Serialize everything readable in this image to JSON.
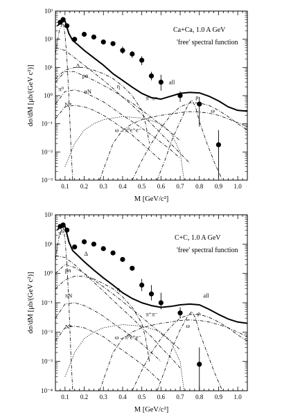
{
  "chart_data": [
    {
      "type": "line",
      "annotation_title": "Ca+Ca,  1.0 A GeV",
      "annotation_subtitle": "'free' spectral function",
      "xlabel": "M [GeV/c²]",
      "ylabel": "dσ/dM  [μb/(GeV c²)]",
      "xlim": [
        0.05,
        1.05
      ],
      "ylim_log10": [
        -3,
        3
      ],
      "x_scale": "linear",
      "y_scale": "log",
      "xticks": [
        0.1,
        0.2,
        0.3,
        0.4,
        0.5,
        0.6,
        0.7,
        0.8,
        0.9,
        1.0
      ],
      "xtick_labels": [
        "0.1",
        "0.2",
        "0.3",
        "0.4",
        "0.5",
        "0.6",
        "0.7",
        "0.8",
        "0.9",
        "1.0"
      ],
      "ytick_labels": [
        "10⁻³",
        "10⁻²",
        "10⁻¹",
        "10⁰",
        "10¹",
        "10²",
        "10³"
      ],
      "series": [
        {
          "name": "all",
          "style": "solid-thick",
          "x": [
            0.06,
            0.08,
            0.1,
            0.12,
            0.14,
            0.16,
            0.2,
            0.25,
            0.3,
            0.35,
            0.4,
            0.45,
            0.5,
            0.55,
            0.6,
            0.65,
            0.7,
            0.75,
            0.8,
            0.85,
            0.9,
            0.95,
            1.0,
            1.05
          ],
          "y": [
            300,
            400,
            450,
            160,
            90,
            70,
            40,
            22,
            12,
            6,
            3.5,
            2.0,
            1.2,
            0.85,
            0.75,
            0.95,
            1.2,
            1.3,
            1.25,
            0.95,
            0.65,
            0.4,
            0.3,
            0.28
          ]
        },
        {
          "name": "π⁰",
          "style": "dashdot",
          "x": [
            0.05,
            0.07,
            0.09,
            0.1,
            0.11,
            0.12,
            0.13,
            0.14
          ],
          "y": [
            30,
            200,
            400,
            150,
            20,
            1.0,
            0.02,
            0.001
          ]
        },
        {
          "name": "Δ",
          "style": "dashdot",
          "x": [
            0.05,
            0.1,
            0.15,
            0.2,
            0.25,
            0.3,
            0.35,
            0.4,
            0.45,
            0.5,
            0.55,
            0.6,
            0.65,
            0.7,
            0.75
          ],
          "y": [
            50,
            40,
            22,
            12,
            6.5,
            3.5,
            1.8,
            0.9,
            0.45,
            0.22,
            0.1,
            0.045,
            0.02,
            0.009,
            0.004
          ]
        },
        {
          "name": "η",
          "style": "dashdot",
          "x": [
            0.05,
            0.1,
            0.15,
            0.2,
            0.25,
            0.3,
            0.35,
            0.4,
            0.45,
            0.5,
            0.52,
            0.54
          ],
          "y": [
            4,
            8,
            10,
            10,
            8,
            6,
            4,
            2.2,
            1.0,
            0.3,
            0.1,
            0.02
          ]
        },
        {
          "name": "pn",
          "style": "dashdot",
          "x": [
            0.05,
            0.1,
            0.15,
            0.2,
            0.25,
            0.3,
            0.35,
            0.4,
            0.45,
            0.5,
            0.55,
            0.6,
            0.65,
            0.7
          ],
          "y": [
            3,
            7,
            7,
            5,
            3.5,
            2.3,
            1.5,
            0.9,
            0.55,
            0.3,
            0.17,
            0.09,
            0.05,
            0.025
          ]
        },
        {
          "name": "πN",
          "style": "dashdot",
          "x": [
            0.05,
            0.1,
            0.15,
            0.2,
            0.25,
            0.3,
            0.35,
            0.4,
            0.45,
            0.5,
            0.55,
            0.6,
            0.65,
            0.7
          ],
          "y": [
            0.5,
            1.4,
            1.6,
            1.3,
            0.9,
            0.6,
            0.35,
            0.2,
            0.12,
            0.07,
            0.04,
            0.022,
            0.012,
            0.006
          ]
        },
        {
          "name": "N*",
          "style": "dashdot",
          "x": [
            0.05,
            0.1,
            0.15,
            0.2,
            0.25,
            0.3,
            0.35,
            0.4,
            0.45,
            0.5,
            0.55,
            0.6
          ],
          "y": [
            0.15,
            0.4,
            0.45,
            0.4,
            0.3,
            0.2,
            0.12,
            0.07,
            0.04,
            0.02,
            0.01,
            0.005
          ]
        },
        {
          "name": "ω→π⁰e⁺e⁻",
          "style": "dotted",
          "x": [
            0.1,
            0.15,
            0.2,
            0.25,
            0.3,
            0.35,
            0.4,
            0.45,
            0.5,
            0.55,
            0.6,
            0.65,
            0.7,
            0.72
          ],
          "y": [
            0.003,
            0.02,
            0.06,
            0.1,
            0.14,
            0.16,
            0.18,
            0.17,
            0.16,
            0.13,
            0.1,
            0.05,
            0.01,
            0.001
          ]
        },
        {
          "name": "π⁺π⁻",
          "style": "dashdot",
          "x": [
            0.28,
            0.35,
            0.4,
            0.45,
            0.5,
            0.55,
            0.6,
            0.65,
            0.7,
            0.75,
            0.8,
            0.85,
            0.9,
            0.95,
            1.0,
            1.05
          ],
          "y": [
            0.001,
            0.02,
            0.06,
            0.1,
            0.14,
            0.17,
            0.2,
            0.22,
            0.25,
            0.27,
            0.26,
            0.24,
            0.2,
            0.15,
            0.11,
            0.08
          ]
        },
        {
          "name": "ρ",
          "style": "dashdot",
          "x": [
            0.45,
            0.5,
            0.55,
            0.6,
            0.65,
            0.7,
            0.75,
            0.8,
            0.85,
            0.9,
            0.95,
            1.0,
            1.05
          ],
          "y": [
            0.001,
            0.005,
            0.02,
            0.07,
            0.2,
            0.4,
            0.55,
            0.55,
            0.45,
            0.3,
            0.18,
            0.1,
            0.06
          ]
        },
        {
          "name": "ω",
          "style": "dashdot",
          "x": [
            0.58,
            0.62,
            0.66,
            0.7,
            0.74,
            0.76,
            0.78,
            0.8,
            0.84,
            0.88,
            0.92
          ],
          "y": [
            0.001,
            0.005,
            0.03,
            0.12,
            0.45,
            0.7,
            0.4,
            0.12,
            0.02,
            0.004,
            0.001
          ]
        },
        {
          "name": "data",
          "style": "markers",
          "x": [
            0.075,
            0.09,
            0.11,
            0.15,
            0.2,
            0.25,
            0.3,
            0.35,
            0.4,
            0.45,
            0.5,
            0.55,
            0.6,
            0.7,
            0.8,
            0.9
          ],
          "y": [
            400,
            500,
            300,
            100,
            150,
            120,
            80,
            70,
            40,
            30,
            18,
            5,
            3,
            1.0,
            0.5,
            0.018
          ],
          "err_lo": [
            null,
            null,
            null,
            null,
            null,
            null,
            null,
            null,
            30,
            22,
            12,
            3.5,
            1.5,
            0.6,
            0.08,
            0.0012
          ],
          "err_hi": [
            null,
            null,
            null,
            null,
            null,
            null,
            null,
            null,
            55,
            38,
            25,
            7,
            5.5,
            1.4,
            0.9,
            0.06
          ]
        }
      ]
    },
    {
      "type": "line",
      "annotation_title": "C+C,  1.0 A GeV",
      "annotation_subtitle": "'free' spectral function",
      "xlabel": "M [GeV/c²]",
      "ylabel": "dσ/dM  [μb/(GeV c²)]",
      "xlim": [
        0.05,
        1.05
      ],
      "ylim_log10": [
        -4,
        2
      ],
      "x_scale": "linear",
      "y_scale": "log",
      "xticks": [
        0.1,
        0.2,
        0.3,
        0.4,
        0.5,
        0.6,
        0.7,
        0.8,
        0.9,
        1.0
      ],
      "xtick_labels": [
        "0.1",
        "0.2",
        "0.3",
        "0.4",
        "0.5",
        "0.6",
        "0.7",
        "0.8",
        "0.9",
        "1.0"
      ],
      "ytick_labels": [
        "10⁻⁴",
        "10⁻³",
        "10⁻²",
        "10⁻¹",
        "10⁰",
        "10¹",
        "10²"
      ],
      "series": [
        {
          "name": "all",
          "style": "solid-thick",
          "x": [
            0.06,
            0.08,
            0.1,
            0.12,
            0.14,
            0.16,
            0.2,
            0.25,
            0.3,
            0.35,
            0.4,
            0.45,
            0.5,
            0.55,
            0.6,
            0.65,
            0.7,
            0.75,
            0.8,
            0.85,
            0.9,
            0.95,
            1.0,
            1.05
          ],
          "y": [
            30,
            45,
            40,
            12,
            6,
            4.5,
            2.5,
            1.3,
            0.7,
            0.4,
            0.22,
            0.14,
            0.1,
            0.08,
            0.07,
            0.075,
            0.085,
            0.09,
            0.085,
            0.06,
            0.04,
            0.028,
            0.022,
            0.02
          ]
        },
        {
          "name": "π⁰",
          "style": "dashdot",
          "x": [
            0.05,
            0.07,
            0.09,
            0.1,
            0.11,
            0.12,
            0.13,
            0.14
          ],
          "y": [
            3,
            20,
            40,
            15,
            2,
            0.1,
            0.002,
            0.0001
          ]
        },
        {
          "name": "Δ",
          "style": "dashdot",
          "x": [
            0.05,
            0.1,
            0.15,
            0.2,
            0.25,
            0.3,
            0.35,
            0.4,
            0.45,
            0.5,
            0.55,
            0.6,
            0.65,
            0.7
          ],
          "y": [
            4,
            3.5,
            2,
            1,
            0.5,
            0.25,
            0.12,
            0.06,
            0.03,
            0.014,
            0.007,
            0.003,
            0.0014,
            0.0006
          ]
        },
        {
          "name": "η",
          "style": "dashdot",
          "x": [
            0.05,
            0.1,
            0.15,
            0.2,
            0.25,
            0.3,
            0.35,
            0.4,
            0.45,
            0.5,
            0.52,
            0.54
          ],
          "y": [
            0.3,
            0.6,
            0.8,
            0.8,
            0.65,
            0.45,
            0.3,
            0.16,
            0.07,
            0.02,
            0.006,
            0.001
          ]
        },
        {
          "name": "pn",
          "style": "dashdot",
          "x": [
            0.05,
            0.1,
            0.15,
            0.2,
            0.25,
            0.3,
            0.35,
            0.4,
            0.45,
            0.5,
            0.55,
            0.6,
            0.65,
            0.7
          ],
          "y": [
            1,
            2,
            1.6,
            1,
            0.6,
            0.35,
            0.2,
            0.11,
            0.06,
            0.032,
            0.017,
            0.009,
            0.005,
            0.0025
          ]
        },
        {
          "name": "πN",
          "style": "dashdot",
          "x": [
            0.05,
            0.1,
            0.15,
            0.2,
            0.25,
            0.3,
            0.35,
            0.4,
            0.45,
            0.5,
            0.55,
            0.6
          ],
          "y": [
            0.03,
            0.09,
            0.1,
            0.08,
            0.055,
            0.035,
            0.02,
            0.012,
            0.007,
            0.004,
            0.002,
            0.001
          ]
        },
        {
          "name": "N*",
          "style": "dashdot",
          "x": [
            0.05,
            0.1,
            0.15,
            0.2,
            0.25,
            0.3,
            0.35,
            0.4,
            0.45,
            0.5,
            0.55,
            0.6
          ],
          "y": [
            0.005,
            0.014,
            0.016,
            0.014,
            0.01,
            0.007,
            0.004,
            0.0024,
            0.0014,
            0.0008,
            0.0004,
            0.0002
          ]
        },
        {
          "name": "ω→π⁰e⁺e⁻",
          "style": "dotted",
          "x": [
            0.1,
            0.15,
            0.2,
            0.25,
            0.3,
            0.35,
            0.4,
            0.45,
            0.5,
            0.55,
            0.6,
            0.65,
            0.7,
            0.72
          ],
          "y": [
            0.0003,
            0.002,
            0.006,
            0.01,
            0.014,
            0.016,
            0.018,
            0.017,
            0.016,
            0.013,
            0.01,
            0.005,
            0.001,
            0.0001
          ]
        },
        {
          "name": "π⁺π⁻",
          "style": "dashdot",
          "x": [
            0.28,
            0.35,
            0.4,
            0.45,
            0.5,
            0.55,
            0.6,
            0.65,
            0.7,
            0.75,
            0.8,
            0.85,
            0.9,
            0.95,
            1.0,
            1.05
          ],
          "y": [
            0.0001,
            0.002,
            0.006,
            0.01,
            0.014,
            0.017,
            0.02,
            0.022,
            0.025,
            0.026,
            0.025,
            0.022,
            0.018,
            0.014,
            0.01,
            0.007
          ]
        },
        {
          "name": "ρ",
          "style": "dashdot",
          "x": [
            0.45,
            0.5,
            0.55,
            0.6,
            0.65,
            0.7,
            0.75,
            0.8,
            0.85,
            0.9,
            0.95,
            1.0,
            1.05
          ],
          "y": [
            0.0001,
            0.0005,
            0.002,
            0.006,
            0.015,
            0.03,
            0.04,
            0.04,
            0.032,
            0.022,
            0.014,
            0.008,
            0.005
          ]
        },
        {
          "name": "ω",
          "style": "dashdot",
          "x": [
            0.58,
            0.62,
            0.66,
            0.7,
            0.74,
            0.76,
            0.78,
            0.8,
            0.84,
            0.88,
            0.92
          ],
          "y": [
            0.0001,
            0.0005,
            0.003,
            0.012,
            0.035,
            0.05,
            0.03,
            0.01,
            0.002,
            0.0004,
            0.0001
          ]
        },
        {
          "name": "data",
          "style": "markers",
          "x": [
            0.075,
            0.09,
            0.11,
            0.15,
            0.2,
            0.25,
            0.3,
            0.35,
            0.4,
            0.45,
            0.5,
            0.55,
            0.6,
            0.7,
            0.8
          ],
          "y": [
            40,
            45,
            30,
            8,
            12,
            10,
            7,
            5,
            3,
            1.5,
            0.4,
            0.2,
            0.1,
            0.045,
            0.0008
          ],
          "err_lo": [
            null,
            null,
            null,
            null,
            null,
            null,
            null,
            null,
            null,
            null,
            0.25,
            0.12,
            0.06,
            0.03,
            0.0001
          ],
          "err_hi": [
            null,
            null,
            null,
            null,
            null,
            null,
            null,
            null,
            null,
            null,
            0.65,
            0.4,
            0.22,
            0.07,
            0.003
          ]
        }
      ]
    }
  ]
}
